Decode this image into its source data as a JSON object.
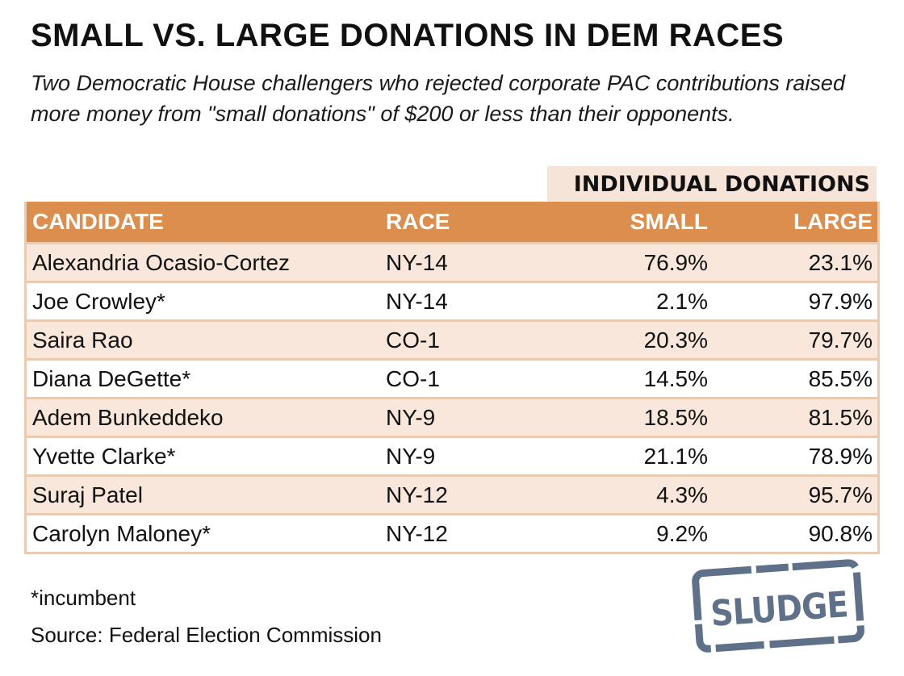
{
  "header": {
    "title": "SMALL VS. LARGE DONATIONS IN DEM RACES",
    "subtitle": "Two Democratic House challengers who rejected corporate PAC contributions raised more money from \"small donations\" of $200 or less than their opponents."
  },
  "chart_data": {
    "type": "table",
    "group_header": "INDIVIDUAL DONATIONS",
    "columns": [
      "CANDIDATE",
      "RACE",
      "SMALL",
      "LARGE"
    ],
    "rows": [
      {
        "candidate": "Alexandria Ocasio-Cortez",
        "race": "NY-14",
        "small": "76.9%",
        "large": "23.1%"
      },
      {
        "candidate": "Joe Crowley*",
        "race": "NY-14",
        "small": "2.1%",
        "large": "97.9%"
      },
      {
        "candidate": "Saira Rao",
        "race": "CO-1",
        "small": "20.3%",
        "large": "79.7%"
      },
      {
        "candidate": "Diana DeGette*",
        "race": "CO-1",
        "small": "14.5%",
        "large": "85.5%"
      },
      {
        "candidate": "Adem Bunkeddeko",
        "race": "NY-9",
        "small": "18.5%",
        "large": "81.5%"
      },
      {
        "candidate": "Yvette Clarke*",
        "race": "NY-9",
        "small": "21.1%",
        "large": "78.9%"
      },
      {
        "candidate": "Suraj Patel",
        "race": "NY-12",
        "small": "4.3%",
        "large": "95.7%"
      },
      {
        "candidate": "Carolyn Maloney*",
        "race": "NY-12",
        "small": "9.2%",
        "large": "90.8%"
      }
    ]
  },
  "footer": {
    "note": "*incumbent",
    "source": "Source: Federal Election Commission"
  },
  "logo": {
    "text": "SLUDGE",
    "icon": "sludge-stamp-logo"
  },
  "colors": {
    "header_row": "#db8e4d",
    "shaded_row": "#f8e7da",
    "border": "#e8cbb1",
    "logo": "#5f7089"
  }
}
